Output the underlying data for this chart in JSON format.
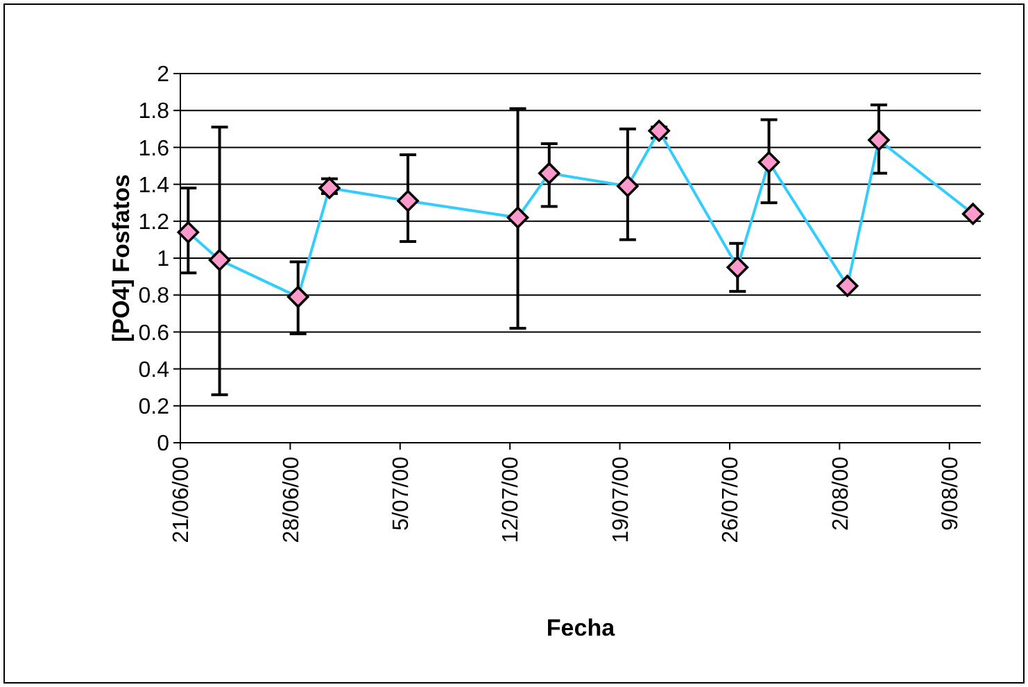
{
  "chart_data": {
    "type": "line",
    "xlabel": "Fecha",
    "ylabel": "[PO4] Fosfatos",
    "x": [
      "2000-06-21T12:00",
      "2000-06-23T12:00",
      "2000-06-28T12:00",
      "2000-06-30T12:00",
      "2000-07-05T12:00",
      "2000-07-12T12:00",
      "2000-07-14T12:00",
      "2000-07-19T12:00",
      "2000-07-21T12:00",
      "2000-07-26T12:00",
      "2000-07-28T12:00",
      "2000-08-02T12:00",
      "2000-08-04T12:00",
      "2000-08-10T12:00"
    ],
    "series": [
      {
        "color": "#33ccff",
        "colors": [
          "#ff99cc",
          "#ff99cc",
          "#ff99cc",
          "#ff99cc",
          "#ff99cc",
          "#ff99cc",
          "#ff99cc",
          "#ff99cc",
          "#ff99cc",
          "#ff99cc",
          "#ff99cc",
          "#ff99cc",
          "#ff99cc",
          "#ff99cc"
        ],
        "values": [
          1.14,
          0.99,
          0.79,
          1.38,
          1.31,
          1.22,
          1.46,
          1.39,
          1.69,
          0.95,
          1.52,
          0.85,
          1.64,
          1.24
        ],
        "errors": [
          [
            0.92,
            1.38
          ],
          [
            0.26,
            1.71
          ],
          [
            0.59,
            0.98
          ],
          [
            1.35,
            1.43
          ],
          [
            1.09,
            1.56
          ],
          [
            0.62,
            1.81
          ],
          [
            1.28,
            1.62
          ],
          [
            1.1,
            1.7
          ],
          [
            1.65,
            1.71
          ],
          [
            0.82,
            1.08
          ],
          [
            1.3,
            1.75
          ],
          0,
          [
            1.46,
            1.83
          ],
          0
        ]
      }
    ],
    "marker": "diamond",
    "line_style": "solid",
    "grid": "y",
    "xlim": [
      "2000-06-21",
      "2000-08-11"
    ],
    "xticks": [
      {
        "value": "2000-06-21",
        "label": "21/06/00"
      },
      {
        "value": "2000-06-28",
        "label": "28/06/00"
      },
      {
        "value": "2000-07-05",
        "label": "5/07/00"
      },
      {
        "value": "2000-07-12",
        "label": "12/07/00"
      },
      {
        "value": "2000-07-19",
        "label": "19/07/00"
      },
      {
        "value": "2000-07-26",
        "label": "26/07/00"
      },
      {
        "value": "2000-08-02",
        "label": "2/08/00"
      },
      {
        "value": "2000-08-09",
        "label": "9/08/00"
      }
    ],
    "ylim": [
      0,
      2
    ],
    "yticks": [
      0,
      0.2,
      0.4,
      0.6,
      0.8,
      1,
      1.2,
      1.4,
      1.6,
      1.8,
      2
    ]
  }
}
